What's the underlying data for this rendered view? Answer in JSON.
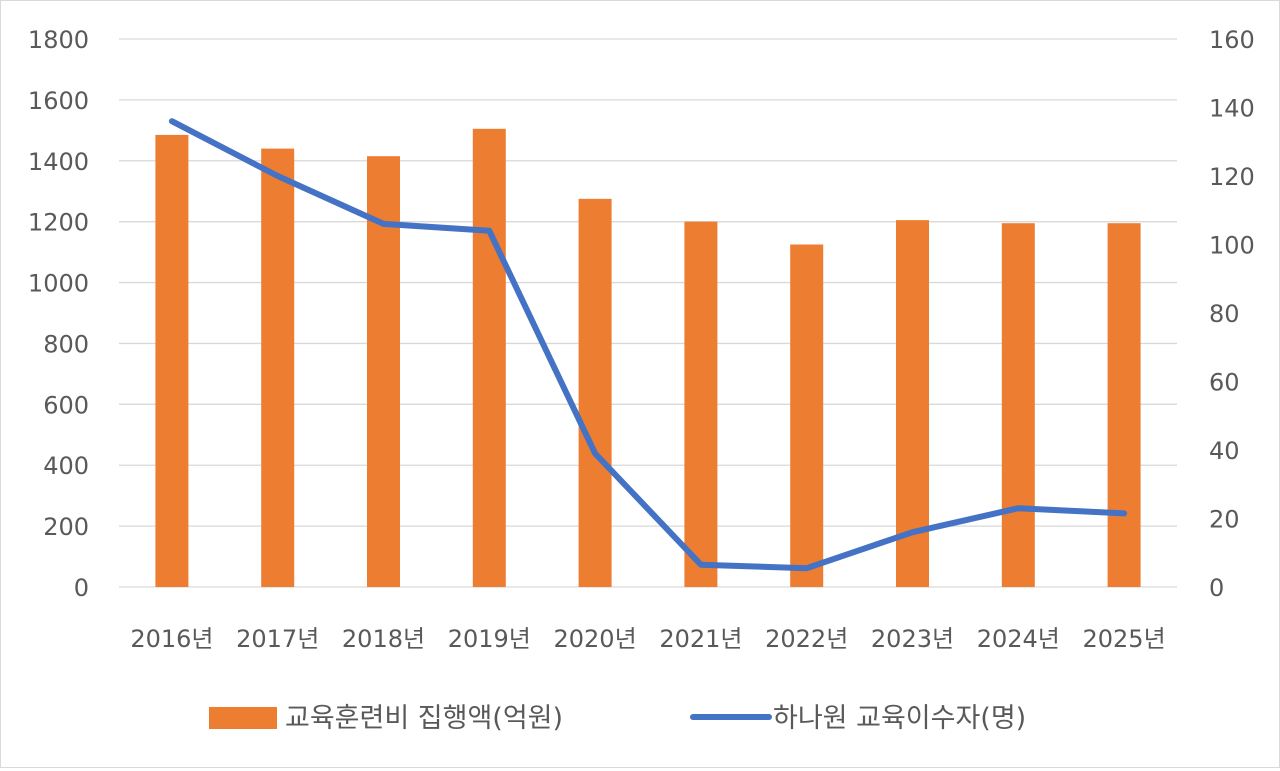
{
  "chart_data": {
    "type": "bar",
    "categories": [
      "2016년",
      "2017년",
      "2018년",
      "2019년",
      "2020년",
      "2021년",
      "2022년",
      "2023년",
      "2024년",
      "2025년"
    ],
    "series": [
      {
        "name": "교육훈련비 집행액(억원)",
        "type": "bar",
        "axis": "left",
        "color": "#ED7D31",
        "values": [
          1485,
          1440,
          1415,
          1505,
          1275,
          1200,
          1125,
          1205,
          1195,
          1195
        ]
      },
      {
        "name": "하나원 교육이수자(명)",
        "type": "line",
        "axis": "right",
        "color": "#4472C4",
        "values": [
          136,
          120,
          106,
          104,
          39,
          6.5,
          5.5,
          16,
          23,
          21.5
        ]
      }
    ],
    "ylim_left": [
      0,
      1800
    ],
    "ylim_right": [
      0,
      160
    ],
    "yticks_left": [
      "0",
      "200",
      "400",
      "600",
      "800",
      "1000",
      "1200",
      "1400",
      "1600",
      "1800"
    ],
    "yticks_right": [
      "0",
      "20",
      "40",
      "60",
      "80",
      "100",
      "120",
      "140",
      "160"
    ],
    "grid": true,
    "legend_position": "bottom"
  }
}
